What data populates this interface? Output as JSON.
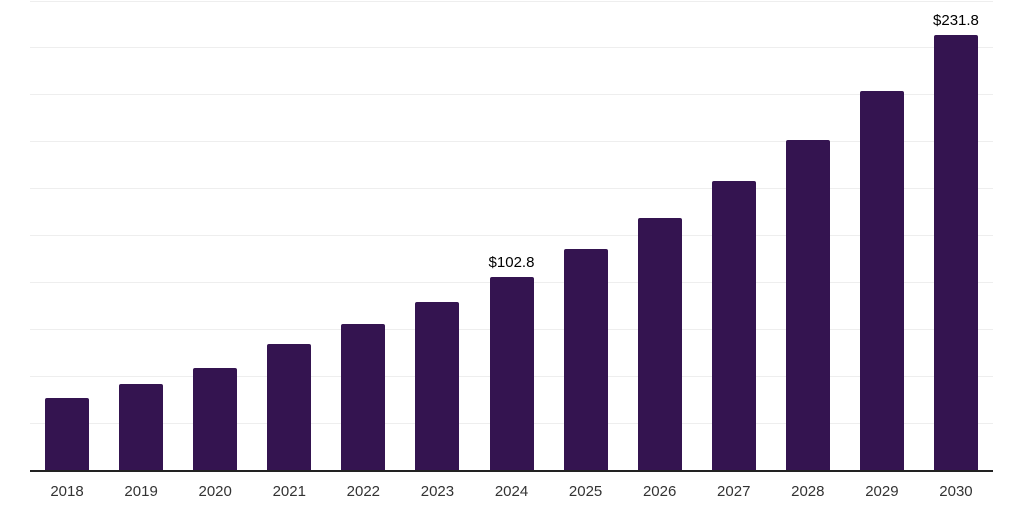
{
  "chart_data": {
    "type": "bar",
    "title": "",
    "xlabel": "",
    "ylabel": "",
    "categories": [
      "2018",
      "2019",
      "2020",
      "2021",
      "2022",
      "2023",
      "2024",
      "2025",
      "2026",
      "2027",
      "2028",
      "2029",
      "2030"
    ],
    "values": [
      38.2,
      45.7,
      54.3,
      67.0,
      77.8,
      89.3,
      102.8,
      117.7,
      134.2,
      153.8,
      176.1,
      201.9,
      231.8
    ],
    "bar_labels": [
      "",
      "",
      "",
      "",
      "",
      "",
      "$102.8",
      "",
      "",
      "",
      "",
      "",
      "$231.8"
    ],
    "ylim": [
      0,
      250
    ],
    "grid_step": 25,
    "grid": true,
    "legend": false,
    "colors": {
      "bar": "#341450",
      "gridline": "#eeeeee",
      "axis": "#222222",
      "tick_label": "#333333",
      "data_label": "#000000"
    }
  }
}
